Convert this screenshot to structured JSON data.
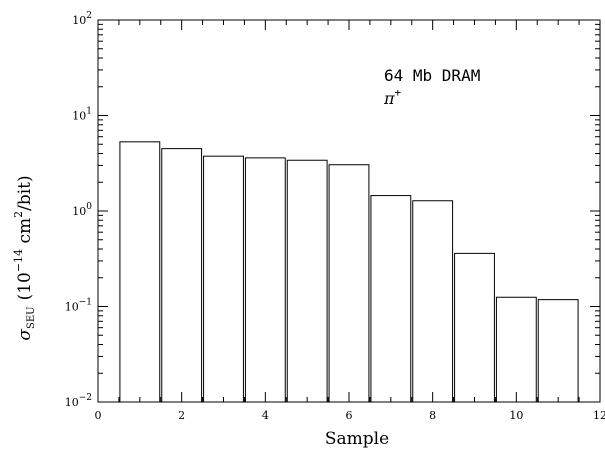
{
  "chart_data": {
    "type": "bar",
    "x": [
      1,
      2,
      3,
      4,
      5,
      6,
      7,
      8,
      9,
      10,
      11
    ],
    "values": [
      5.3,
      4.5,
      3.75,
      3.6,
      3.4,
      3.05,
      1.45,
      1.28,
      0.36,
      0.125,
      0.118
    ],
    "bar_width": 1.0,
    "title": "",
    "xlabel": "Sample",
    "ylabel_symbol": "σ",
    "ylabel_subscript": "SEU",
    "ylabel_prefix": "(10",
    "ylabel_exp": "−14",
    "ylabel_mid": " cm",
    "ylabel_exp2": "2",
    "ylabel_suffix": "/bit)",
    "xlim": [
      0,
      12
    ],
    "ylim": [
      0.01,
      100
    ],
    "yscale": "log",
    "xticks": [
      "0",
      "2",
      "4",
      "6",
      "8",
      "10",
      "12"
    ],
    "yticks": [
      {
        "base": "10",
        "exp": "−2"
      },
      {
        "base": "10",
        "exp": "−1"
      },
      {
        "base": "10",
        "exp": "0"
      },
      {
        "base": "10",
        "exp": "1"
      },
      {
        "base": "10",
        "exp": "2"
      }
    ],
    "annotations": {
      "line1": "64 Mb DRAM",
      "line2_symbol": "π",
      "line2_exp": "+"
    },
    "grid": false,
    "legend": "none"
  }
}
